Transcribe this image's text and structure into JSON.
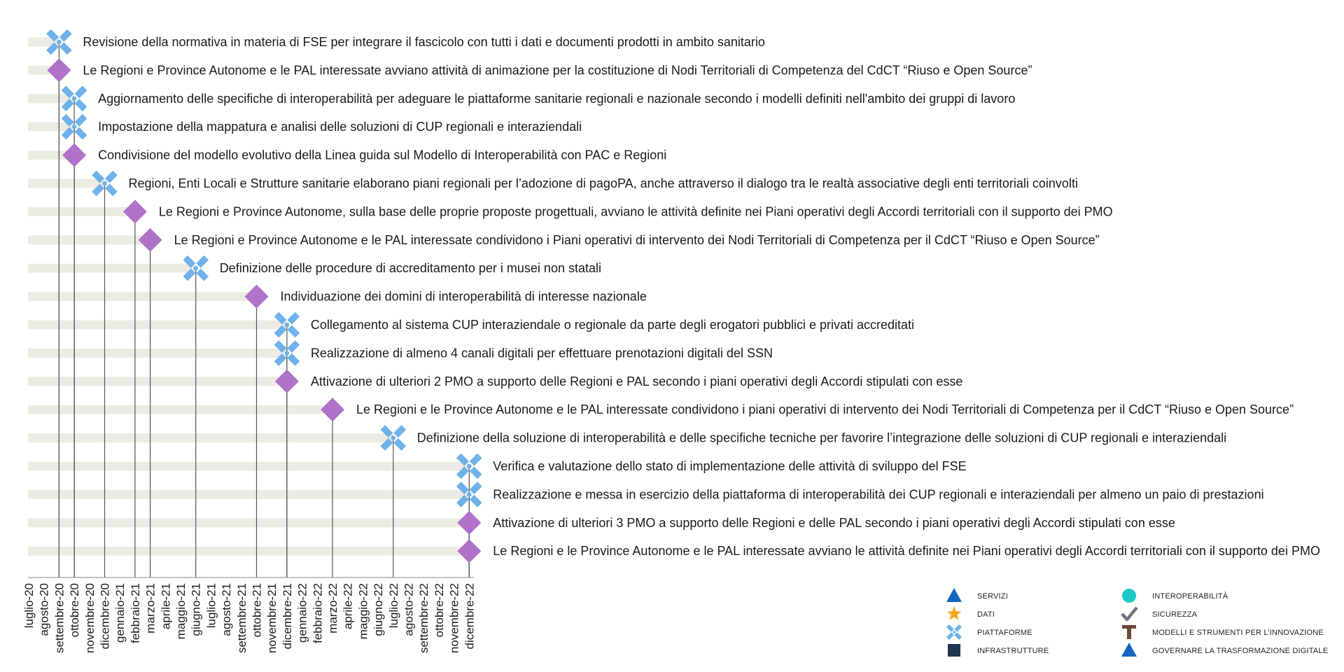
{
  "chart_data": {
    "type": "timeline",
    "x_axis": {
      "ticks": [
        "luglio-20",
        "agosto-20",
        "settembre-20",
        "ottobre-20",
        "novembre-20",
        "dicembre-20",
        "gennaio-21",
        "febbraio-21",
        "marzo-21",
        "aprile-21",
        "maggio-21",
        "giugno-21",
        "luglio-21",
        "agosto-21",
        "settembre-21",
        "ottobre-21",
        "novembre-21",
        "dicembre-21",
        "gennaio-22",
        "febbraio-22",
        "marzo-22",
        "aprile-22",
        "maggio-22",
        "giugno-22",
        "luglio-22",
        "agosto-22",
        "settembre-22",
        "ottobre-22",
        "novembre-22",
        "dicembre-22"
      ]
    },
    "milestones": [
      {
        "month": "settembre-20",
        "category": "PIATTAFORME",
        "label": "Revisione della normativa in materia di FSE per integrare il fascicolo con tutti i dati e documenti prodotti in ambito sanitario"
      },
      {
        "month": "settembre-20",
        "category": "GOVERNARE LA TRASFORMAZIONE DIGITALE",
        "label": "Le Regioni e Province Autonome e le PAL interessate avviano attività di animazione per la costituzione di Nodi Territoriali di Competenza del CdCT “Riuso e Open Source”"
      },
      {
        "month": "ottobre-20",
        "category": "PIATTAFORME",
        "label": "Aggiornamento delle specifiche di interoperabilità per adeguare le piattaforme sanitarie regionali e nazionale secondo i modelli definiti nell'ambito dei gruppi di lavoro"
      },
      {
        "month": "ottobre-20",
        "category": "PIATTAFORME",
        "label": "Impostazione della mappatura e analisi delle soluzioni di CUP regionali e interaziendali"
      },
      {
        "month": "ottobre-20",
        "category": "GOVERNARE LA TRASFORMAZIONE DIGITALE",
        "label": "Condivisione del modello evolutivo della Linea guida sul Modello di Interoperabilità con PAC e Regioni"
      },
      {
        "month": "dicembre-20",
        "category": "PIATTAFORME",
        "label": "Regioni, Enti Locali e Strutture sanitarie elaborano piani regionali per l’adozione di pagoPA, anche attraverso il dialogo tra le realtà associative degli enti territoriali coinvolti"
      },
      {
        "month": "febbraio-21",
        "category": "GOVERNARE LA TRASFORMAZIONE DIGITALE",
        "label": "Le Regioni e Province Autonome,  sulla base delle proprie proposte progettuali,  avviano le attività definite nei Piani operativi degli Accordi territoriali con il supporto dei PMO"
      },
      {
        "month": "marzo-21",
        "category": "GOVERNARE LA TRASFORMAZIONE DIGITALE",
        "label": "Le Regioni e Province Autonome e le PAL interessate condividono i Piani operativi di intervento dei Nodi Territoriali di Competenza per il CdCT “Riuso e Open Source”"
      },
      {
        "month": "giugno-21",
        "category": "PIATTAFORME",
        "label": "Definizione delle procedure di accreditamento per i musei non statali"
      },
      {
        "month": "ottobre-21",
        "category": "GOVERNARE LA TRASFORMAZIONE DIGITALE",
        "label": "Individuazione dei domini di interoperabilità di interesse nazionale"
      },
      {
        "month": "dicembre-21",
        "category": "PIATTAFORME",
        "label": "Collegamento al sistema CUP interaziendale o regionale da parte degli erogatori pubblici e privati accreditati"
      },
      {
        "month": "dicembre-21",
        "category": "PIATTAFORME",
        "label": "Realizzazione di almeno 4 canali digitali per effettuare prenotazioni digitali del SSN"
      },
      {
        "month": "dicembre-21",
        "category": "GOVERNARE LA TRASFORMAZIONE DIGITALE",
        "label": "Attivazione di ulteriori 2 PMO a supporto delle Regioni e PAL secondo i piani operativi degli Accordi stipulati con esse"
      },
      {
        "month": "marzo-22",
        "category": "GOVERNARE LA TRASFORMAZIONE DIGITALE",
        "label": "Le Regioni e le Province Autonome e le PAL interessate condividono i piani operativi di intervento dei Nodi Territoriali di Competenza per il CdCT “Riuso e Open Source”"
      },
      {
        "month": "luglio-22",
        "category": "PIATTAFORME",
        "label": "Definizione della soluzione di interoperabilità e delle specifiche tecniche per favorire l’integrazione delle soluzioni di CUP regionali e interaziendali"
      },
      {
        "month": "dicembre-22",
        "category": "PIATTAFORME",
        "label": "Verifica e valutazione dello stato di implementazione delle attività di sviluppo del FSE"
      },
      {
        "month": "dicembre-22",
        "category": "PIATTAFORME",
        "label": "Realizzazione e messa in esercizio della piattaforma di interoperabilità dei CUP regionali e interaziendali per almeno un paio di prestazioni"
      },
      {
        "month": "dicembre-22",
        "category": "GOVERNARE LA TRASFORMAZIONE DIGITALE",
        "label": "Attivazione di ulteriori 3 PMO a supporto delle Regioni e delle PAL secondo i piani operativi degli Accordi stipulati con esse"
      },
      {
        "month": "dicembre-22",
        "category": "GOVERNARE LA TRASFORMAZIONE DIGITALE",
        "label": "Le Regioni e le Province Autonome e le PAL interessate avviano le attività definite nei Piani operativi degli Accordi territoriali con il supporto dei PMO"
      }
    ],
    "legend": {
      "placement": "bottom-right",
      "items": [
        {
          "name": "SERVIZI",
          "icon": "triangle-icon",
          "color": "#1565c0"
        },
        {
          "name": "INTEROPERABILITÀ",
          "icon": "circle-icon",
          "color": "#1ec8c4"
        },
        {
          "name": "DATI",
          "icon": "star-icon",
          "color": "#f5a623"
        },
        {
          "name": "SICUREZZA",
          "icon": "check-icon",
          "color": "#6b7480"
        },
        {
          "name": "PIATTAFORME",
          "icon": "cross-icon",
          "color": "#6fb1ea"
        },
        {
          "name": "MODELLI E STRUMENTI PER L’INNOVAZIONE",
          "icon": "t-icon",
          "color": "#6b4a3a"
        },
        {
          "name": "INFRASTRUTTURE",
          "icon": "square-icon",
          "color": "#1f3550"
        },
        {
          "name": "GOVERNARE LA TRASFORMAZIONE DIGITALE",
          "icon": "triangle-icon",
          "color": "#1565c0"
        }
      ]
    },
    "colors": {
      "bar": "#ecebe3",
      "axis": "#555555",
      "platform_marker": "#6fb1ea",
      "governance_marker": "#b072c8"
    }
  }
}
